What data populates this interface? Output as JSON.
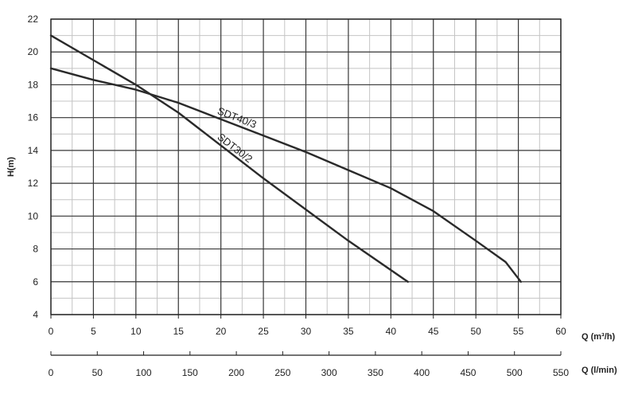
{
  "chart_data": {
    "type": "line",
    "title": "",
    "ylabel": "H(m)",
    "xlabel": "Q (m³/h)",
    "x2label": "Q (l/min)",
    "xlim": [
      0,
      60
    ],
    "ylim": [
      4,
      22
    ],
    "x2lim": [
      0,
      550
    ],
    "xticks": [
      "0",
      "5",
      "10",
      "15",
      "20",
      "25",
      "30",
      "35",
      "40",
      "45",
      "50",
      "55",
      "60"
    ],
    "x2ticks": [
      "0",
      "50",
      "100",
      "150",
      "200",
      "250",
      "300",
      "350",
      "400",
      "450",
      "500",
      "550"
    ],
    "yticks": [
      "4",
      "6",
      "8",
      "10",
      "12",
      "14",
      "16",
      "18",
      "20",
      "22"
    ],
    "grid": true,
    "legend": "none",
    "series": [
      {
        "name": "SDT40/3",
        "x": [
          0,
          5,
          10,
          15,
          20,
          25,
          30,
          35,
          40,
          45,
          50,
          53.5,
          55.3
        ],
        "y": [
          19.0,
          18.3,
          17.7,
          16.9,
          15.9,
          14.9,
          13.9,
          12.8,
          11.7,
          10.3,
          8.5,
          7.2,
          6.0
        ],
        "color": "#2a2a2a"
      },
      {
        "name": "SDT30/2",
        "x": [
          0,
          5,
          10,
          15,
          20,
          25,
          30,
          35,
          42
        ],
        "y": [
          21.0,
          19.5,
          18.0,
          16.3,
          14.3,
          12.3,
          10.4,
          8.5,
          6.0
        ],
        "color": "#2a2a2a"
      }
    ]
  }
}
